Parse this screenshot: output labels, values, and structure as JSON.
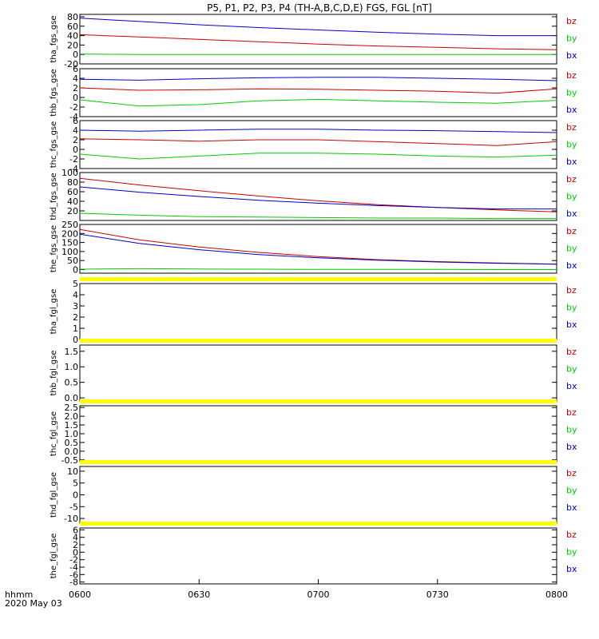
{
  "title": "P5, P1, P2, P3, P4 (TH-A,B,C,D,E) FGS, FGL [nT]",
  "time_axis": {
    "label_line1": "hhmm",
    "label_line2": "2020 May 03",
    "ticks": [
      "0600",
      "0630",
      "0700",
      "0730",
      "0800"
    ],
    "range_minutes": [
      0,
      120
    ]
  },
  "legend_labels": [
    "bz",
    "by",
    "bx"
  ],
  "colors": {
    "bz": "#cc0000",
    "by": "#00cc00",
    "bx": "#0000cc",
    "flag": "#ffff00",
    "axis": "#000000"
  },
  "chart_data": [
    {
      "type": "line",
      "ylabel": "tha_fgs_gse",
      "ylim": [
        -20,
        85
      ],
      "yticks": [
        "80",
        "60",
        "40",
        "20",
        "0",
        "-20"
      ],
      "ytick_values": [
        80,
        60,
        40,
        20,
        0,
        -20
      ],
      "x_minutes": [
        0,
        15,
        30,
        45,
        60,
        75,
        90,
        105,
        120
      ],
      "series": [
        {
          "name": "bz",
          "values": [
            42,
            37,
            32,
            27,
            22,
            18,
            15,
            12,
            10
          ]
        },
        {
          "name": "by",
          "values": [
            1,
            0,
            0,
            0,
            0,
            0,
            0,
            0,
            0
          ]
        },
        {
          "name": "bx",
          "values": [
            77,
            70,
            63,
            57,
            52,
            47,
            43,
            40,
            40
          ]
        }
      ]
    },
    {
      "type": "line",
      "ylabel": "thb_fgs_gse",
      "ylim": [
        -4,
        6
      ],
      "yticks": [
        "6",
        "4",
        "2",
        "0",
        "-2",
        "-4"
      ],
      "ytick_values": [
        6,
        4,
        2,
        0,
        -2,
        -4
      ],
      "x_minutes": [
        0,
        15,
        30,
        45,
        60,
        75,
        90,
        105,
        120
      ],
      "series": [
        {
          "name": "bz",
          "values": [
            2.0,
            1.5,
            1.6,
            1.8,
            1.7,
            1.5,
            1.3,
            0.9,
            1.8
          ]
        },
        {
          "name": "by",
          "values": [
            -0.5,
            -1.8,
            -1.5,
            -0.7,
            -0.4,
            -0.7,
            -1.0,
            -1.2,
            -0.6
          ]
        },
        {
          "name": "bx",
          "values": [
            3.8,
            3.6,
            3.9,
            4.1,
            4.2,
            4.2,
            4.0,
            3.8,
            3.5
          ]
        }
      ]
    },
    {
      "type": "line",
      "ylabel": "thc_fgs_gse",
      "ylim": [
        -4,
        6
      ],
      "yticks": [
        "6",
        "4",
        "2",
        "0",
        "-2",
        "-4"
      ],
      "ytick_values": [
        6,
        4,
        2,
        0,
        -2,
        -4
      ],
      "x_minutes": [
        0,
        15,
        30,
        45,
        60,
        75,
        90,
        105,
        120
      ],
      "series": [
        {
          "name": "bz",
          "values": [
            2.2,
            2.0,
            1.7,
            2.0,
            2.0,
            1.6,
            1.2,
            0.8,
            1.6
          ]
        },
        {
          "name": "by",
          "values": [
            -1.0,
            -2.0,
            -1.4,
            -0.8,
            -0.8,
            -1.0,
            -1.4,
            -1.6,
            -1.2
          ]
        },
        {
          "name": "bx",
          "values": [
            4.0,
            3.8,
            4.0,
            4.2,
            4.2,
            4.0,
            3.9,
            3.7,
            3.5
          ]
        }
      ]
    },
    {
      "type": "line",
      "ylabel": "thd_fgs_gse",
      "ylim": [
        0,
        100
      ],
      "yticks": [
        "100",
        "80",
        "60",
        "40",
        "20"
      ],
      "ytick_values": [
        100,
        80,
        60,
        40,
        20
      ],
      "x_minutes": [
        0,
        15,
        30,
        45,
        60,
        75,
        90,
        105,
        120
      ],
      "series": [
        {
          "name": "bz",
          "values": [
            88,
            74,
            62,
            51,
            41,
            33,
            27,
            22,
            18
          ]
        },
        {
          "name": "by",
          "values": [
            15,
            11,
            8,
            7,
            6,
            5,
            5,
            4,
            4
          ]
        },
        {
          "name": "bx",
          "values": [
            70,
            59,
            50,
            42,
            36,
            31,
            27,
            24,
            24
          ]
        }
      ]
    },
    {
      "type": "line",
      "ylabel": "the_fgs_gse",
      "ylim": [
        -20,
        250
      ],
      "yticks": [
        "250",
        "200",
        "150",
        "100",
        "50",
        "0"
      ],
      "ytick_values": [
        250,
        200,
        150,
        100,
        50,
        0
      ],
      "x_minutes": [
        0,
        15,
        30,
        45,
        60,
        75,
        90,
        105,
        120
      ],
      "series": [
        {
          "name": "bz",
          "values": [
            222,
            165,
            125,
            95,
            72,
            55,
            44,
            36,
            30
          ]
        },
        {
          "name": "by",
          "values": [
            2,
            5,
            3,
            2,
            1,
            1,
            1,
            0,
            0
          ]
        },
        {
          "name": "bx",
          "values": [
            196,
            145,
            110,
            83,
            65,
            52,
            42,
            35,
            30
          ]
        }
      ]
    },
    {
      "type": "line",
      "ylabel": "tha_fgl_gse",
      "ylim": [
        0,
        5
      ],
      "yticks": [
        "5",
        "4",
        "3",
        "2",
        "1",
        "0"
      ],
      "ytick_values": [
        5,
        4,
        3,
        2,
        1,
        0
      ],
      "x_minutes": [],
      "series": []
    },
    {
      "type": "line",
      "ylabel": "thb_fgl_gse",
      "ylim": [
        -0.1,
        1.7
      ],
      "yticks": [
        "1.5",
        "1.0",
        "0.5",
        "0.0"
      ],
      "ytick_values": [
        1.5,
        1.0,
        0.5,
        0.0
      ],
      "x_minutes": [],
      "series": []
    },
    {
      "type": "line",
      "ylabel": "thc_fgl_gse",
      "ylim": [
        -0.6,
        2.6
      ],
      "yticks": [
        "2.5",
        "2.0",
        "1.5",
        "1.0",
        "0.5",
        "0.0",
        "-0.5"
      ],
      "ytick_values": [
        2.5,
        2.0,
        1.5,
        1.0,
        0.5,
        0.0,
        -0.5
      ],
      "x_minutes": [],
      "series": []
    },
    {
      "type": "line",
      "ylabel": "thd_fgl_gse",
      "ylim": [
        -12,
        12
      ],
      "yticks": [
        "10",
        "5",
        "0",
        "-5",
        "-10"
      ],
      "ytick_values": [
        10,
        5,
        0,
        -5,
        -10
      ],
      "x_minutes": [],
      "series": []
    },
    {
      "type": "line",
      "ylabel": "the_fgl_gse",
      "ylim": [
        -8.5,
        6.5
      ],
      "yticks": [
        "6",
        "4",
        "2",
        "0",
        "-2",
        "-4",
        "-6",
        "-8"
      ],
      "ytick_values": [
        6,
        4,
        2,
        0,
        -2,
        -4,
        -6,
        -8
      ],
      "x_minutes": [],
      "series": []
    }
  ]
}
